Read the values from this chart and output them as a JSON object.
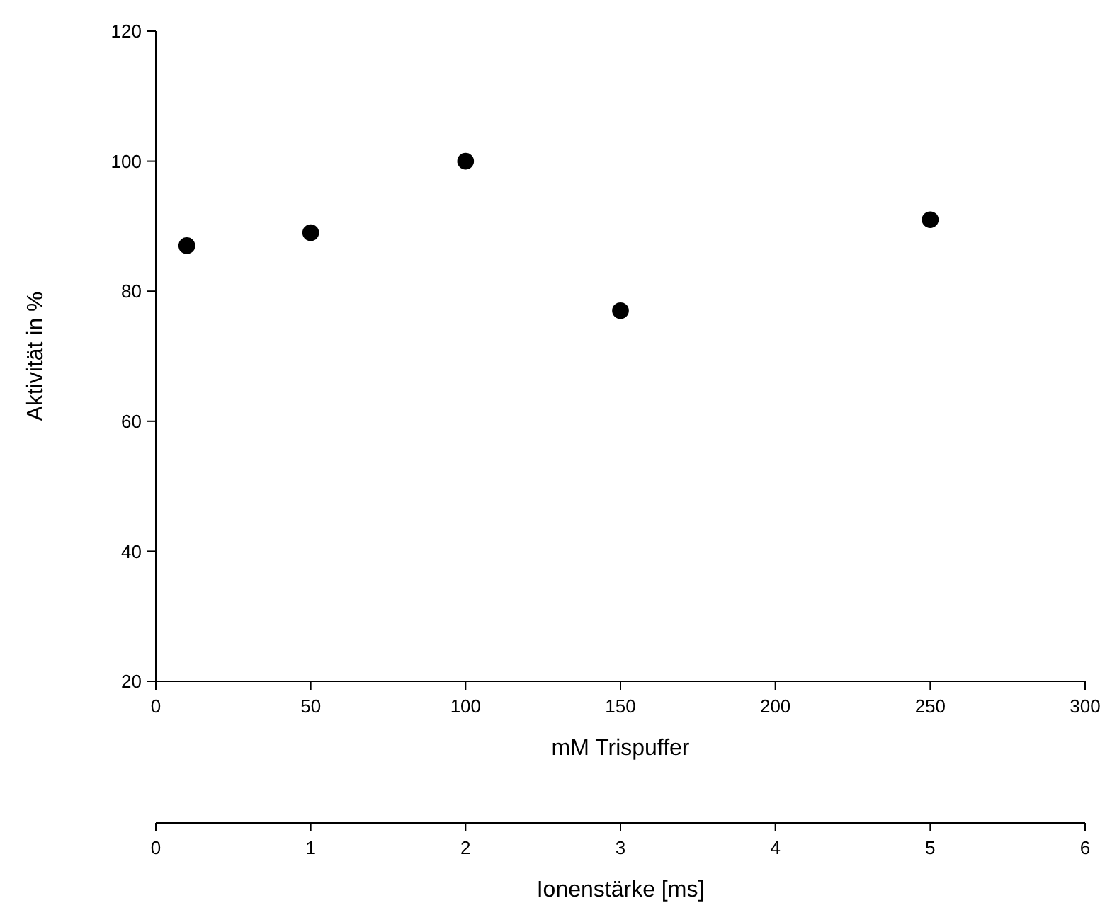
{
  "chart_data": {
    "type": "scatter",
    "xlabel": "mM Trispuffer",
    "ylabel": "Aktivität in %",
    "x2label": "Ionenstärke [ms]",
    "x": [
      10,
      50,
      100,
      150,
      250
    ],
    "values": [
      87,
      89,
      100,
      77,
      91
    ],
    "color": "#000000",
    "marker": "circle",
    "xlim": [
      0,
      300
    ],
    "xticks": [
      0,
      50,
      100,
      150,
      200,
      250,
      300
    ],
    "ylim": [
      20,
      120
    ],
    "yticks": [
      20,
      40,
      60,
      80,
      100,
      120
    ],
    "x2lim": [
      0,
      6
    ],
    "x2ticks": [
      0,
      1,
      2,
      3,
      4,
      5,
      6
    ]
  }
}
